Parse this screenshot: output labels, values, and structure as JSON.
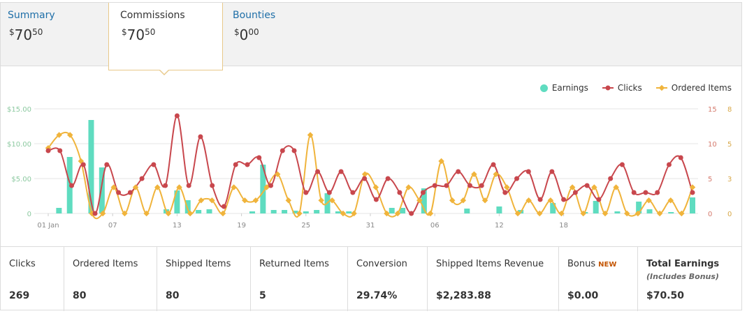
{
  "tabs": [
    {
      "label": "Summary",
      "currency": "$",
      "whole": "70",
      "cents": "50"
    },
    {
      "label": "Commissions",
      "currency": "$",
      "whole": "70",
      "cents": "50"
    },
    {
      "label": "Bounties",
      "currency": "$",
      "whole": "0",
      "cents": "00"
    }
  ],
  "active_tab": "Commissions",
  "colors": {
    "earnings": "#5fdcc0",
    "clicks": "#c8474d",
    "ordered": "#f0b43c",
    "link": "#1f6fa8",
    "new_badge": "#c45500"
  },
  "chart_data": {
    "type": "bar+line",
    "legend": [
      "Earnings",
      "Clicks",
      "Ordered Items"
    ],
    "legend_position": "top-right",
    "x_tick_labels": [
      "01 Jan",
      "07",
      "13",
      "19",
      "25",
      "31",
      "06",
      "12",
      "18"
    ],
    "y_left_ticks": [
      "$15.00",
      "$10.00",
      "$5.00",
      "0"
    ],
    "y_right_clicks_ticks": [
      "15",
      "10",
      "5",
      "0"
    ],
    "y_right_ordered_ticks": [
      "8",
      "5",
      "3",
      "0"
    ],
    "y_left_range": [
      0,
      15
    ],
    "y_right_clicks_range": [
      0,
      15
    ],
    "y_right_ordered_range": [
      0,
      8
    ],
    "grid": true,
    "series": [
      {
        "name": "Earnings",
        "type": "bar",
        "values": [
          0,
          0.8,
          8.1,
          0,
          13.4,
          6.6,
          0,
          0,
          0,
          0,
          0,
          0.6,
          3.3,
          1.9,
          0.5,
          0.6,
          0,
          0,
          0,
          0.3,
          7.0,
          0.5,
          0.5,
          0.4,
          0.3,
          0.5,
          2.9,
          0.3,
          0.3,
          0,
          0,
          0,
          0.8,
          0.8,
          0,
          3.6,
          0,
          0,
          0,
          0.7,
          0,
          0,
          1.0,
          0,
          0.5,
          0,
          0,
          1.5,
          0,
          0,
          0.2,
          1.8,
          0,
          0.3,
          0,
          1.7,
          0.6,
          0,
          0.2,
          0,
          2.3
        ]
      },
      {
        "name": "Clicks",
        "type": "line",
        "values": [
          9,
          9,
          4,
          7,
          0,
          7,
          3,
          3,
          5,
          7,
          4,
          14,
          4,
          11,
          4,
          1,
          7,
          7,
          8,
          4,
          9,
          9,
          3,
          6,
          3,
          6,
          3,
          5,
          2,
          5,
          3,
          0,
          3,
          4,
          4,
          6,
          4,
          4,
          7,
          3,
          5,
          6,
          2,
          6,
          2,
          3,
          4,
          2,
          5,
          7,
          3,
          3,
          3,
          7,
          8,
          3
        ]
      },
      {
        "name": "Ordered Items",
        "type": "line",
        "values": [
          5,
          6,
          6,
          4,
          0,
          0,
          2,
          0,
          2,
          0,
          2,
          0,
          2,
          0,
          1,
          1,
          0,
          2,
          1,
          1,
          2,
          3,
          1,
          0,
          6,
          1,
          1,
          0,
          0,
          3,
          2,
          0,
          0,
          2,
          1,
          0,
          4,
          1,
          1,
          3,
          1,
          3,
          2,
          0,
          1,
          0,
          1,
          0,
          2,
          0,
          2,
          0,
          2,
          0,
          0,
          1,
          0,
          1,
          0,
          2
        ]
      }
    ]
  },
  "stats": [
    {
      "label": "Clicks",
      "value": "269"
    },
    {
      "label": "Ordered Items",
      "value": "80"
    },
    {
      "label": "Shipped Items",
      "value": "80"
    },
    {
      "label": "Returned Items",
      "value": "5"
    },
    {
      "label": "Conversion",
      "value": "29.74%"
    },
    {
      "label": "Shipped Items Revenue",
      "value": "$2,283.88"
    },
    {
      "label": "Bonus",
      "badge": "NEW",
      "value": "$0.00"
    },
    {
      "label": "Total Earnings",
      "sublabel": "(Includes Bonus)",
      "value": "$70.50"
    }
  ]
}
